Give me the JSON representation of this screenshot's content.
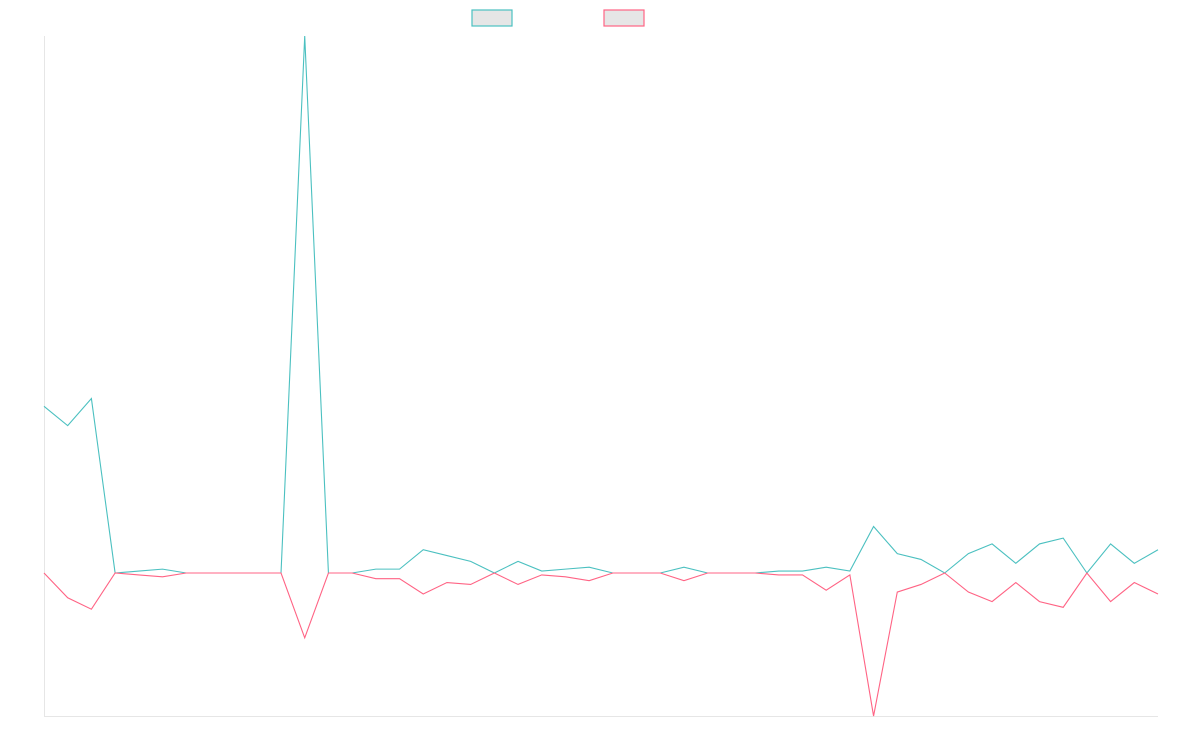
{
  "chart_data": {
    "type": "line",
    "title": "",
    "xlabel": "",
    "ylabel": "",
    "grid": false,
    "legend": "top-center",
    "x_count": 48,
    "ylim": [
      -100,
      250
    ],
    "series": [
      {
        "color": "#4bc0c0",
        "values": [
          86,
          76,
          90,
          0,
          1,
          2,
          0,
          0,
          0,
          0,
          0,
          277,
          0,
          0,
          2,
          2,
          12,
          9,
          6,
          0,
          6,
          1,
          2,
          3,
          0,
          0,
          0,
          3,
          0,
          0,
          0,
          1,
          1,
          3,
          1,
          24,
          10,
          7,
          0,
          10,
          15,
          5,
          15,
          18,
          0,
          15,
          5,
          12
        ]
      },
      {
        "color": "#ff6384",
        "values": [
          0,
          -13,
          -19,
          0,
          -1,
          -2,
          0,
          0,
          0,
          0,
          0,
          -34,
          0,
          0,
          -3,
          -3,
          -11,
          -5,
          -6,
          0,
          -6,
          -1,
          -2,
          -4,
          0,
          0,
          0,
          -4,
          0,
          0,
          0,
          -1,
          -1,
          -9,
          -1,
          -75,
          -10,
          -6,
          0,
          -10,
          -15,
          -5,
          -15,
          -18,
          0,
          -15,
          -5,
          -11
        ]
      }
    ]
  }
}
